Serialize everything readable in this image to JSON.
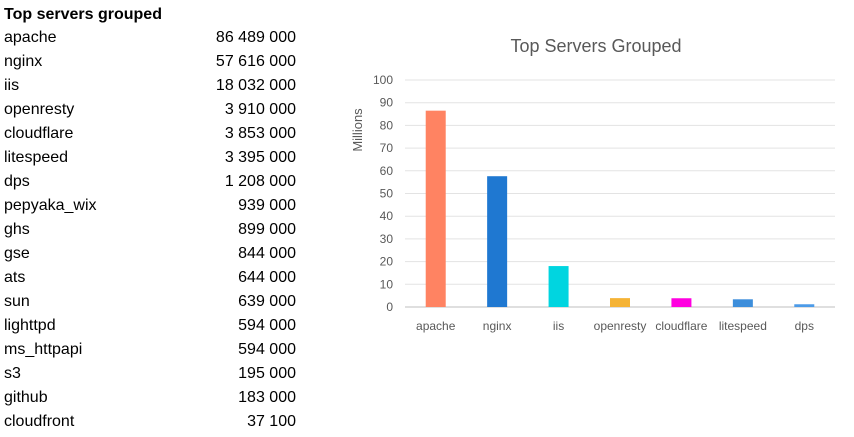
{
  "table": {
    "title": "Top servers grouped",
    "rows": [
      {
        "name": "apache",
        "value": "86 489 000"
      },
      {
        "name": "nginx",
        "value": "57 616 000"
      },
      {
        "name": "iis",
        "value": "18 032 000"
      },
      {
        "name": "openresty",
        "value": "3 910 000"
      },
      {
        "name": "cloudflare",
        "value": "3 853 000"
      },
      {
        "name": "litespeed",
        "value": "3 395 000"
      },
      {
        "name": "dps",
        "value": "1 208 000"
      },
      {
        "name": "pepyaka_wix",
        "value": "939 000"
      },
      {
        "name": "ghs",
        "value": "899 000"
      },
      {
        "name": "gse",
        "value": "844 000"
      },
      {
        "name": "ats",
        "value": "644 000"
      },
      {
        "name": "sun",
        "value": "639 000"
      },
      {
        "name": "lighttpd",
        "value": "594 000"
      },
      {
        "name": "ms_httpapi",
        "value": "594 000"
      },
      {
        "name": "s3",
        "value": "195 000"
      },
      {
        "name": "github",
        "value": "183 000"
      },
      {
        "name": "cloudfront",
        "value": "37 100"
      }
    ]
  },
  "chart_data": {
    "type": "bar",
    "title": "Top Servers Grouped",
    "xlabel": "",
    "ylabel": "Millions",
    "ylim": [
      0,
      100
    ],
    "yticks": [
      0,
      10,
      20,
      30,
      40,
      50,
      60,
      70,
      80,
      90,
      100
    ],
    "grid": true,
    "categories": [
      "apache",
      "nginx",
      "iis",
      "openresty",
      "cloudflare",
      "litespeed",
      "dps"
    ],
    "values": [
      86.489,
      57.616,
      18.032,
      3.91,
      3.853,
      3.395,
      1.208
    ],
    "colors": [
      "#FF8362",
      "#1F78D1",
      "#00D5E0",
      "#F5B335",
      "#FF00E0",
      "#3D8EDB",
      "#4C9BE8"
    ]
  }
}
